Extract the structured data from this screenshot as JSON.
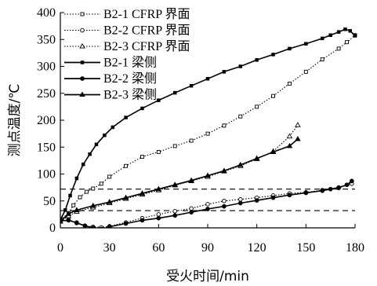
{
  "chart_data": {
    "type": "line",
    "xlabel": "受火时间/min",
    "ylabel": "测点温度/℃",
    "xlim": [
      0,
      180
    ],
    "ylim": [
      0,
      400
    ],
    "xticks": [
      0,
      30,
      60,
      90,
      120,
      150,
      180
    ],
    "yticks": [
      0,
      50,
      100,
      150,
      200,
      250,
      300,
      350,
      400
    ],
    "grid": false,
    "legend_position": "top-left",
    "reference_lines": [
      72,
      32
    ],
    "series": [
      {
        "name": "B2-1 CFRP 界面",
        "line": "dotted",
        "marker": "square-open",
        "x": [
          0,
          5,
          8,
          12,
          16,
          20,
          25,
          30,
          40,
          50,
          60,
          70,
          80,
          90,
          100,
          110,
          120,
          130,
          140,
          150,
          160,
          170,
          175,
          180
        ],
        "y": [
          15,
          27,
          42,
          57,
          67,
          73,
          82,
          95,
          115,
          132,
          141,
          152,
          162,
          175,
          190,
          207,
          225,
          245,
          268,
          290,
          313,
          333,
          345,
          358
        ]
      },
      {
        "name": "B2-2 CFRP 界面",
        "line": "dotted",
        "marker": "circle-open",
        "x": [
          0,
          5,
          10,
          15,
          20,
          25,
          30,
          40,
          50,
          60,
          70,
          80,
          90,
          100,
          110,
          120,
          130,
          140,
          150,
          160,
          170,
          178
        ],
        "y": [
          14,
          15,
          10,
          4,
          2,
          1,
          3,
          10,
          18,
          25,
          31,
          36,
          44,
          50,
          53,
          56,
          60,
          64,
          66,
          70,
          74,
          82
        ]
      },
      {
        "name": "B2-3 CFRP 界面",
        "line": "dotted",
        "marker": "triangle-open",
        "x": [
          0,
          5,
          10,
          20,
          30,
          40,
          50,
          60,
          70,
          80,
          90,
          100,
          110,
          120,
          130,
          140,
          145
        ],
        "y": [
          12,
          22,
          30,
          38,
          46,
          54,
          62,
          70,
          79,
          87,
          95,
          105,
          115,
          128,
          142,
          170,
          191
        ]
      },
      {
        "name": "B2-1 梁侧",
        "line": "solid",
        "marker": "square-filled",
        "x": [
          0,
          3,
          6,
          10,
          14,
          18,
          22,
          27,
          32,
          40,
          50,
          60,
          70,
          80,
          90,
          100,
          110,
          120,
          130,
          140,
          150,
          160,
          165,
          170,
          174,
          177,
          180
        ],
        "y": [
          15,
          33,
          60,
          92,
          118,
          137,
          155,
          172,
          187,
          205,
          222,
          237,
          251,
          264,
          277,
          290,
          300,
          312,
          322,
          333,
          342,
          352,
          358,
          364,
          369,
          366,
          357
        ]
      },
      {
        "name": "B2-2 梁侧",
        "line": "solid",
        "marker": "circle-filled",
        "x": [
          0,
          5,
          10,
          15,
          20,
          25,
          30,
          40,
          50,
          60,
          70,
          80,
          90,
          100,
          110,
          120,
          130,
          140,
          150,
          160,
          165,
          170,
          175,
          178
        ],
        "y": [
          13,
          14,
          9,
          4,
          0,
          -2,
          2,
          8,
          14,
          18,
          23,
          29,
          35,
          40,
          46,
          51,
          56,
          61,
          65,
          69,
          72,
          75,
          80,
          87
        ]
      },
      {
        "name": "B2-3 梁侧",
        "line": "solid",
        "marker": "triangle-filled",
        "x": [
          0,
          5,
          10,
          20,
          30,
          40,
          50,
          60,
          70,
          80,
          90,
          100,
          110,
          120,
          130,
          140,
          145
        ],
        "y": [
          12,
          26,
          33,
          41,
          48,
          56,
          64,
          72,
          80,
          88,
          97,
          106,
          117,
          129,
          141,
          152,
          165
        ]
      }
    ]
  }
}
